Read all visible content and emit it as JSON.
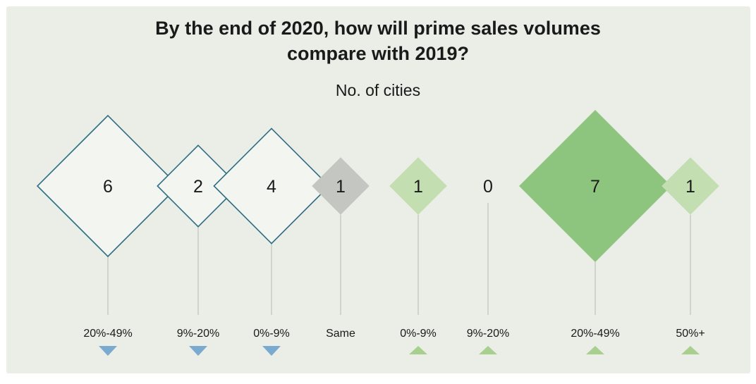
{
  "chart_data": {
    "type": "diamond",
    "title_lines": [
      "By the end of 2020, how will prime sales volumes",
      "compare with 2019?"
    ],
    "subtitle": "No. of cities",
    "categories": [
      "20%-49%",
      "9%-20%",
      "0%-9%",
      "Same",
      "0%-9%",
      "9%-20%",
      "20%-49%",
      "50%+"
    ],
    "values": [
      6,
      2,
      4,
      1,
      1,
      0,
      7,
      1
    ],
    "direction": [
      "down",
      "down",
      "down",
      "none",
      "up",
      "up",
      "up",
      "up"
    ],
    "fill_colors": [
      "#f3f5f1",
      "#f3f5f1",
      "#f3f5f1",
      "#c4c6c1",
      "#c3deb0",
      "none",
      "#8dc47e",
      "#c3deb0"
    ],
    "stroke_colors": [
      "#2f6e83",
      "#2f6e83",
      "#2f6e83",
      "none",
      "none",
      "none",
      "none",
      "none"
    ],
    "marker_colors": {
      "down": "#7aaad0",
      "up": "#a9cf8e"
    }
  }
}
